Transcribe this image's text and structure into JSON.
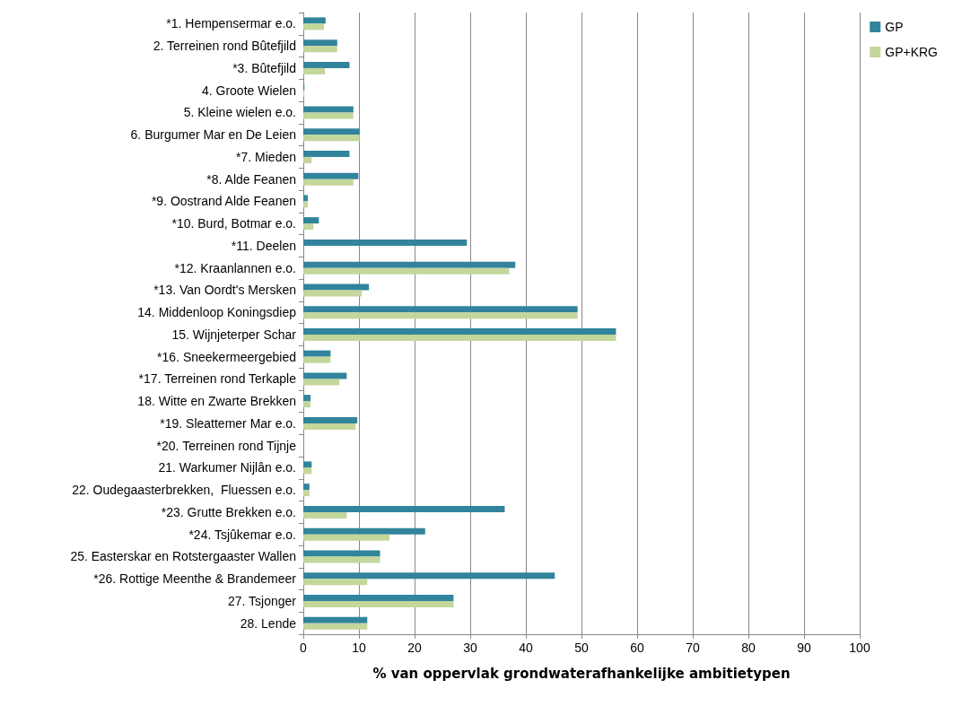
{
  "chart_data": {
    "type": "bar",
    "orientation": "horizontal",
    "xlabel": "% van oppervlak grondwaterafhankelijke ambitietypen",
    "categories": [
      "*1. Hempensermar e.o.",
      "2. Terreinen rond Bûtefjild",
      "*3. Bûtefjild",
      "4. Groote Wielen",
      "5. Kleine wielen e.o.",
      "6. Burgumer Mar en De Leien",
      "*7. Mieden",
      "*8. Alde Feanen",
      "*9. Oostrand Alde Feanen",
      "*10. Burd, Botmar e.o.",
      "*11. Deelen",
      "*12. Kraanlannen e.o.",
      "*13. Van Oordt's Mersken",
      "14. Middenloop Koningsdiep",
      "15. Wijnjeterper Schar",
      "*16. Sneekermeergebied",
      "*17. Terreinen rond Terkaple",
      "18. Witte en Zwarte Brekken",
      "*19. Sleattemer Mar e.o.",
      "*20. Terreinen rond Tijnje",
      "21. Warkumer Nijlân e.o.",
      "22. Oudegaasterbrekken,  Fluessen e.o.",
      "*23. Grutte Brekken e.o.",
      "*24. Tsjûkemar e.o.",
      "25. Easterskar en Rotstergaaster Wallen",
      "*26. Rottige Meenthe & Brandemeer",
      "27. Tsjonger",
      "28. Lende"
    ],
    "series": [
      {
        "name": "GP",
        "color": "#31849b",
        "values": [
          4.0,
          6.1,
          8.3,
          0.2,
          9.0,
          10.1,
          8.3,
          9.9,
          0.8,
          2.8,
          29.4,
          38.1,
          11.8,
          49.3,
          56.2,
          4.9,
          7.8,
          1.3,
          9.7,
          0,
          1.5,
          1.1,
          36.2,
          21.9,
          13.8,
          45.2,
          27.0,
          11.5
        ]
      },
      {
        "name": "GP+KRG",
        "color": "#c3d69b",
        "values": [
          3.7,
          6.1,
          3.9,
          0.2,
          9.0,
          10.1,
          1.5,
          9.0,
          0.8,
          1.8,
          0,
          37.0,
          10.5,
          49.3,
          56.2,
          4.9,
          6.5,
          1.3,
          9.4,
          0,
          1.5,
          1.1,
          7.8,
          15.5,
          13.8,
          11.5,
          27.0,
          11.5
        ]
      }
    ],
    "xlim": [
      0,
      100
    ],
    "xticks": [
      0,
      10,
      20,
      30,
      40,
      50,
      60,
      70,
      80,
      90,
      100
    ],
    "grid": "x",
    "legend": "top right"
  }
}
